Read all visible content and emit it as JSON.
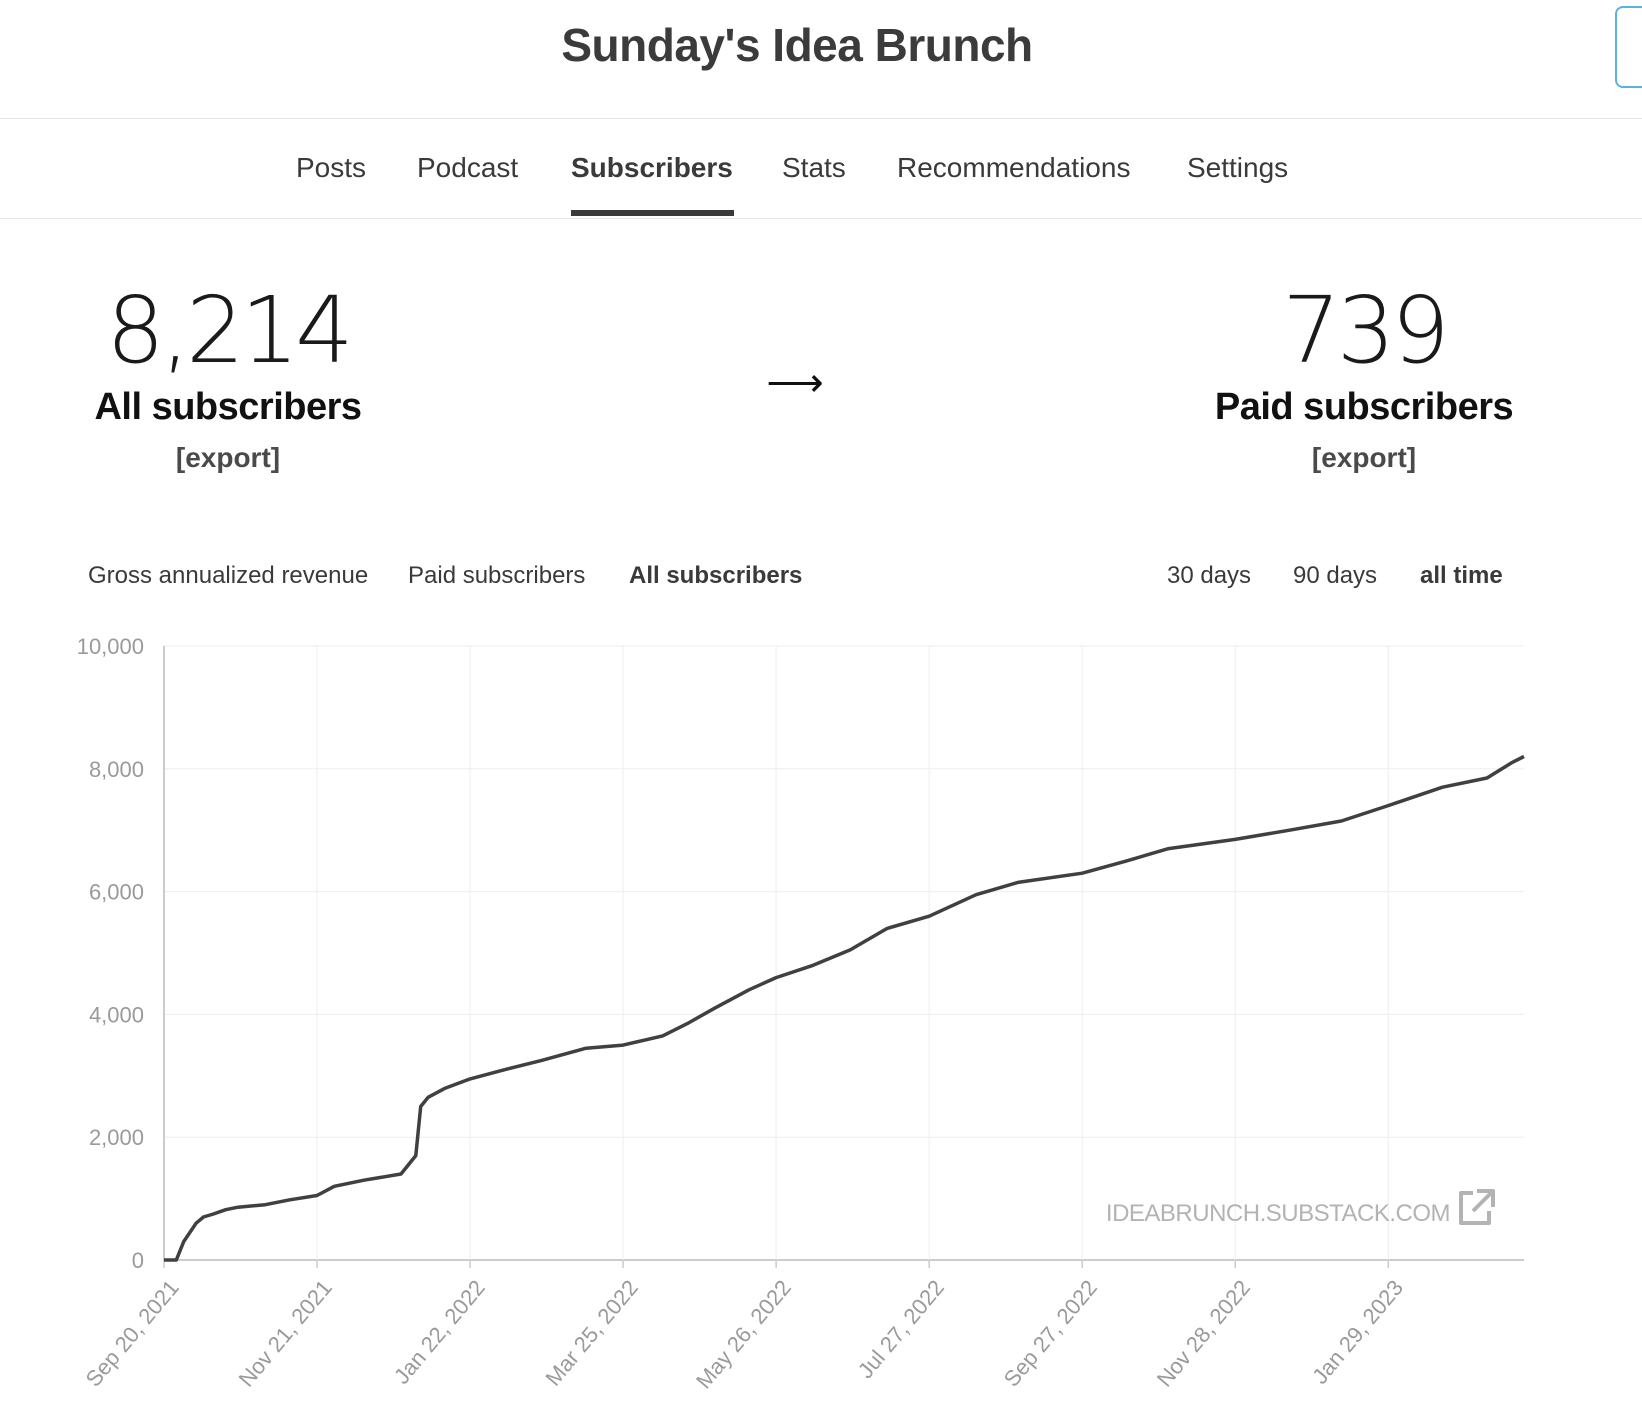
{
  "header": {
    "title": "Sunday's Idea Brunch"
  },
  "nav": {
    "tabs": [
      {
        "label": "Posts",
        "active": false
      },
      {
        "label": "Podcast",
        "active": false
      },
      {
        "label": "Subscribers",
        "active": true
      },
      {
        "label": "Stats",
        "active": false
      },
      {
        "label": "Recommendations",
        "active": false
      },
      {
        "label": "Settings",
        "active": false
      }
    ]
  },
  "stats": {
    "all": {
      "value": "8,214",
      "label": "All subscribers",
      "export": "[export]"
    },
    "arrow": "⟶",
    "paid": {
      "value": "739",
      "label": "Paid subscribers",
      "export": "[export]"
    }
  },
  "chart_controls": {
    "metrics": [
      {
        "label": "Gross annualized revenue",
        "active": false
      },
      {
        "label": "Paid subscribers",
        "active": false
      },
      {
        "label": "All subscribers",
        "active": true
      }
    ],
    "ranges": [
      {
        "label": "30 days",
        "active": false
      },
      {
        "label": "90 days",
        "active": false
      },
      {
        "label": "all time",
        "active": true
      }
    ]
  },
  "watermark": "IDEABRUNCH.SUBSTACK.COM",
  "icons": {
    "external_link": "external-link-icon"
  },
  "colors": {
    "line": "#404040",
    "grid": "#eeeeee",
    "axis": "#cccccc",
    "tick": "#9a9a9a"
  },
  "chart_data": {
    "type": "line",
    "title": "",
    "xlabel": "",
    "ylabel": "",
    "ylim": [
      0,
      10000
    ],
    "yticks": [
      "0",
      "2,000",
      "4,000",
      "6,000",
      "8,000",
      "10,000"
    ],
    "xticks": [
      "Sep 20, 2021",
      "Nov 21, 2021",
      "Jan 22, 2022",
      "Mar 25, 2022",
      "May 26, 2022",
      "Jul 27, 2022",
      "Sep 27, 2022",
      "Nov 28, 2022",
      "Jan 29, 2023"
    ],
    "grid": true,
    "legend": "none",
    "series": [
      {
        "x": [
          "2021-09-20",
          "2021-09-25",
          "2021-09-28",
          "2021-10-03",
          "2021-10-06",
          "2021-10-10",
          "2021-10-15",
          "2021-10-20",
          "2021-10-31",
          "2021-11-10",
          "2021-11-21",
          "2021-11-28",
          "2021-12-10",
          "2021-12-25",
          "2021-12-31",
          "2022-01-02",
          "2022-01-05",
          "2022-01-12",
          "2022-01-22",
          "2022-02-05",
          "2022-02-20",
          "2022-03-10",
          "2022-03-25",
          "2022-04-10",
          "2022-04-20",
          "2022-05-01",
          "2022-05-15",
          "2022-05-26",
          "2022-06-10",
          "2022-06-25",
          "2022-07-10",
          "2022-07-27",
          "2022-08-15",
          "2022-09-01",
          "2022-09-27",
          "2022-10-15",
          "2022-11-01",
          "2022-11-28",
          "2022-12-20",
          "2023-01-10",
          "2023-01-29",
          "2023-02-20",
          "2023-03-10",
          "2023-03-20",
          "2023-03-25"
        ],
        "y": [
          0,
          0,
          300,
          600,
          700,
          750,
          820,
          860,
          900,
          980,
          1050,
          1200,
          1300,
          1400,
          1700,
          2500,
          2650,
          2800,
          2950,
          3100,
          3250,
          3450,
          3500,
          3650,
          3850,
          4100,
          4400,
          4600,
          4800,
          5050,
          5400,
          5600,
          5950,
          6150,
          6300,
          6500,
          6700,
          6850,
          7000,
          7150,
          7400,
          7700,
          7850,
          8100,
          8200
        ]
      }
    ]
  }
}
